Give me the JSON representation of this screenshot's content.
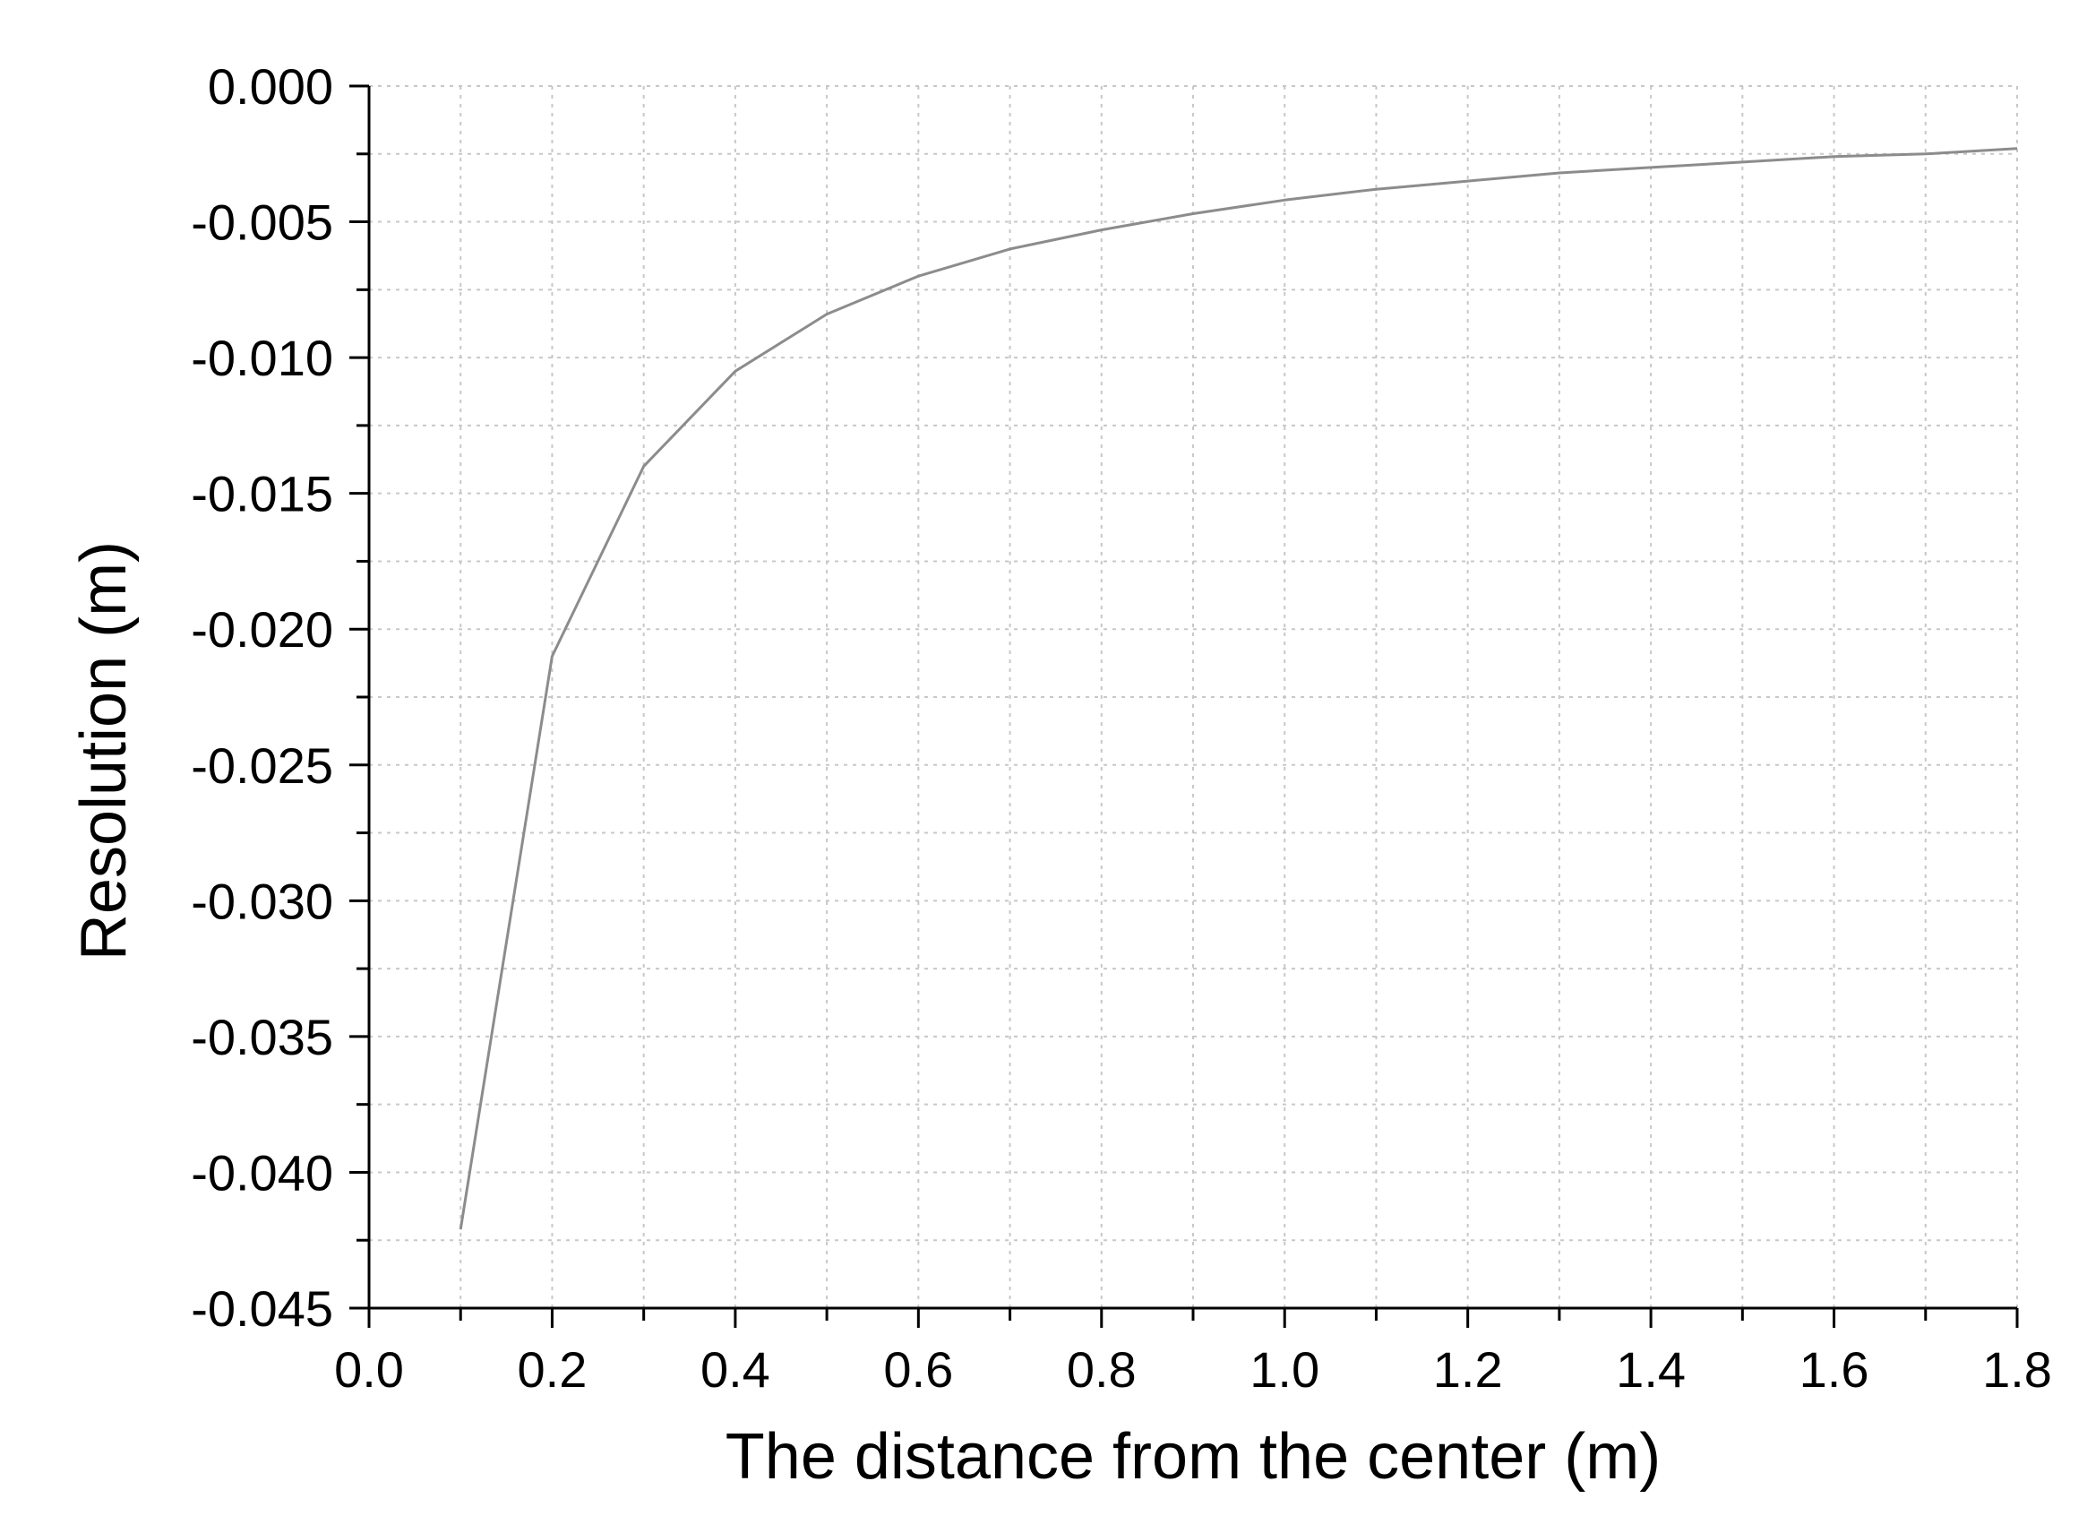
{
  "chart_data": {
    "type": "line",
    "xlabel": "The distance from the center (m)",
    "ylabel": "Resolution (m)",
    "xlim": [
      0.0,
      1.8
    ],
    "ylim": [
      -0.045,
      0.0
    ],
    "x_ticks": [
      "0.0",
      "0.2",
      "0.4",
      "0.6",
      "0.8",
      "1.0",
      "1.2",
      "1.4",
      "1.6",
      "1.8"
    ],
    "y_ticks": [
      "0.000",
      "-0.005",
      "-0.010",
      "-0.015",
      "-0.020",
      "-0.025",
      "-0.030",
      "-0.035",
      "-0.040",
      "-0.045"
    ],
    "grid": true,
    "series": [
      {
        "x": [
          0.1,
          0.2,
          0.3,
          0.4,
          0.5,
          0.6,
          0.7,
          0.8,
          0.9,
          1.0,
          1.1,
          1.2,
          1.3,
          1.4,
          1.5,
          1.6,
          1.7,
          1.8
        ],
        "values": [
          -0.0421,
          -0.021,
          -0.014,
          -0.0105,
          -0.0084,
          -0.007,
          -0.006,
          -0.0053,
          -0.0047,
          -0.0042,
          -0.0038,
          -0.0035,
          -0.0032,
          -0.003,
          -0.0028,
          -0.0026,
          -0.0025,
          -0.0023
        ]
      }
    ],
    "colors": {
      "line": "#8c8c8c",
      "axis": "#000000",
      "grid": "#c8c8c8"
    }
  }
}
